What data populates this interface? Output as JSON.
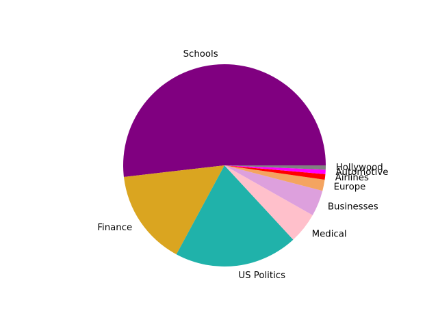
{
  "chart_data": {
    "type": "pie",
    "title": "",
    "categories": [
      "Schools",
      "Finance",
      "US Politics",
      "Medical",
      "Businesses",
      "Europe",
      "Airlines",
      "Automotive",
      "Hollywood"
    ],
    "values": [
      52.5,
      15.5,
      20.0,
      5.0,
      4.2,
      1.8,
      0.9,
      0.7,
      0.7
    ],
    "colors": [
      "#800080",
      "#DAA520",
      "#20B2AA",
      "#FFC0CB",
      "#DDA0DD",
      "#F4A460",
      "#FF0000",
      "#FF00FF",
      "#808080"
    ],
    "start_angle_deg": 0,
    "counterclock": true,
    "legend": "none"
  }
}
